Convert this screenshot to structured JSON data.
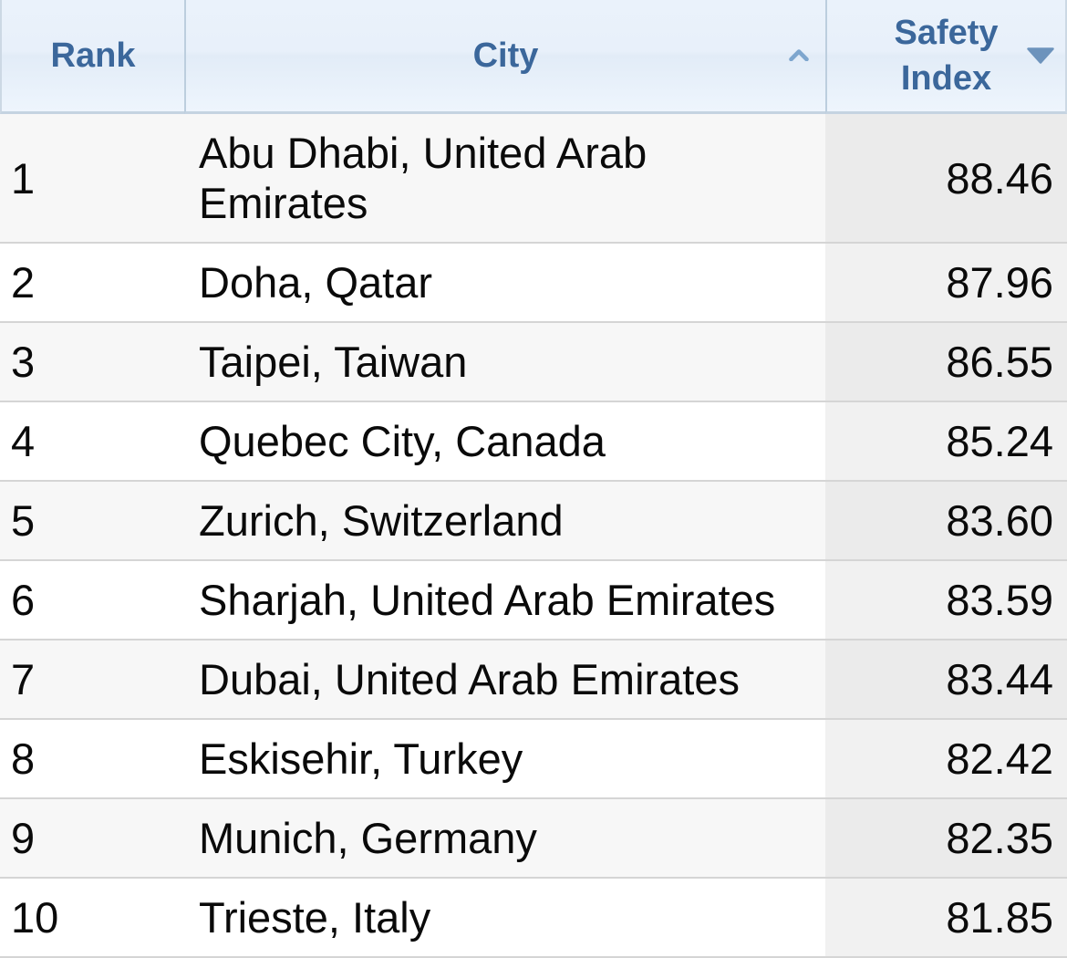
{
  "table": {
    "columns": [
      {
        "label": "Rank",
        "sort": "none",
        "sort_icon": null
      },
      {
        "label": "City",
        "sort": "ascending",
        "sort_icon": "chevron-up-icon"
      },
      {
        "label": "Safety Index",
        "sort": "descending",
        "sort_icon": "triangle-down-icon"
      }
    ],
    "rows": [
      {
        "rank": "1",
        "city": "Abu Dhabi, United Arab Emirates",
        "safety_index": "88.46"
      },
      {
        "rank": "2",
        "city": "Doha, Qatar",
        "safety_index": "87.96"
      },
      {
        "rank": "3",
        "city": "Taipei, Taiwan",
        "safety_index": "86.55"
      },
      {
        "rank": "4",
        "city": "Quebec City, Canada",
        "safety_index": "85.24"
      },
      {
        "rank": "5",
        "city": "Zurich, Switzerland",
        "safety_index": "83.60"
      },
      {
        "rank": "6",
        "city": "Sharjah, United Arab Emirates",
        "safety_index": "83.59"
      },
      {
        "rank": "7",
        "city": "Dubai, United Arab Emirates",
        "safety_index": "83.44"
      },
      {
        "rank": "8",
        "city": "Eskisehir, Turkey",
        "safety_index": "82.42"
      },
      {
        "rank": "9",
        "city": "Munich, Germany",
        "safety_index": "82.35"
      },
      {
        "rank": "10",
        "city": "Trieste, Italy",
        "safety_index": "81.85"
      }
    ]
  },
  "colors": {
    "header_text": "#3b679b",
    "header_bg_top": "#eaf2fb",
    "header_bg_bottom": "#eef5fd",
    "header_border": "#c5d3e1",
    "header_divider": "#bccede",
    "row_stripe": "#f7f7f7",
    "row_border": "#d5d5d5",
    "index_column_even": "#f1f1f1",
    "index_column_odd": "#ebebeb",
    "sort_ascending_icon": "#7ea6ce",
    "sort_descending_icon": "#6d93bc",
    "body_text": "#0a0a0a"
  }
}
